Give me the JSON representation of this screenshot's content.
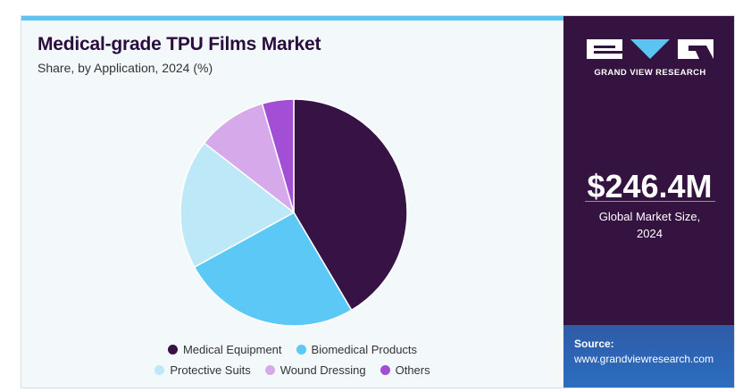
{
  "header": {
    "title": "Medical-grade TPU Films Market",
    "subtitle": "Share, by Application, 2024 (%)"
  },
  "chart_data": {
    "type": "pie",
    "title": "Medical-grade TPU Films Market",
    "subtitle": "Share, by Application, 2024 (%)",
    "categories": [
      "Medical Equipment",
      "Biomedical Products",
      "Protective Suits",
      "Wound Dressing",
      "Others"
    ],
    "values": [
      41.5,
      25.5,
      18.5,
      10.0,
      4.5
    ],
    "colors": [
      "#361245",
      "#5bc8f5",
      "#bce8f8",
      "#d6aaea",
      "#a24fd6"
    ],
    "legend_position": "bottom"
  },
  "branding": {
    "logo_text": "GRAND VIEW RESEARCH",
    "market_size": "$246.4M",
    "market_size_label_line1": "Global Market Size,",
    "market_size_label_line2": "2024",
    "source_label": "Source:",
    "source_url": "www.grandviewresearch.com"
  },
  "colors": {
    "panel_background": "#351341",
    "accent": "#5bc4f3",
    "title_color": "#2b0d3d"
  }
}
